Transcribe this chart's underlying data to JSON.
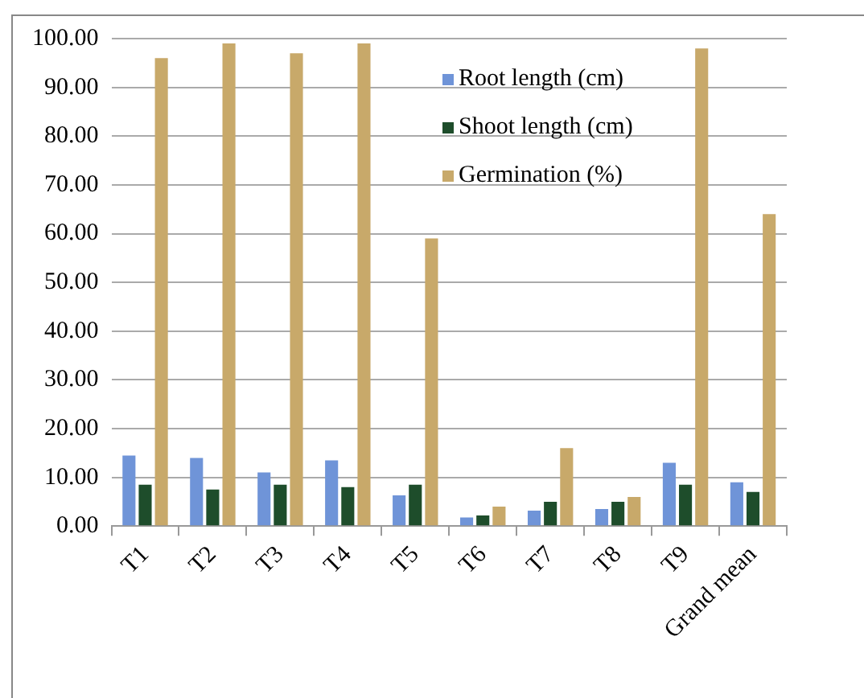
{
  "chart_data": {
    "type": "bar",
    "categories": [
      "T1",
      "T2",
      "T3",
      "T4",
      "T5",
      "T6",
      "T7",
      "T8",
      "T9",
      "Grand mean"
    ],
    "series": [
      {
        "name": "Root length (cm)",
        "color": "#6f94d8",
        "values": [
          14.5,
          14,
          11,
          13.5,
          6.3,
          1.8,
          3.2,
          3.5,
          13,
          9
        ]
      },
      {
        "name": "Shoot length (cm)",
        "color": "#1e4d2b",
        "values": [
          8.5,
          7.5,
          8.5,
          8,
          8.5,
          2.2,
          5,
          5,
          8.5,
          7
        ]
      },
      {
        "name": "Germination (%)",
        "color": "#c8a96a",
        "values": [
          96,
          99,
          97,
          99,
          59,
          4,
          16,
          6,
          98,
          64
        ]
      }
    ],
    "ylim": [
      0,
      100
    ],
    "yticks": [
      {
        "value": 0,
        "label": "0.00"
      },
      {
        "value": 10,
        "label": "10.00"
      },
      {
        "value": 20,
        "label": "20.00"
      },
      {
        "value": 30,
        "label": "30.00"
      },
      {
        "value": 40,
        "label": "40.00"
      },
      {
        "value": 50,
        "label": "50.00"
      },
      {
        "value": 60,
        "label": "60.00"
      },
      {
        "value": 70,
        "label": "70.00"
      },
      {
        "value": 80,
        "label": "80.00"
      },
      {
        "value": 90,
        "label": "90.00"
      },
      {
        "value": 100,
        "label": "100.00"
      }
    ],
    "grid": "y",
    "legend": "top right"
  }
}
